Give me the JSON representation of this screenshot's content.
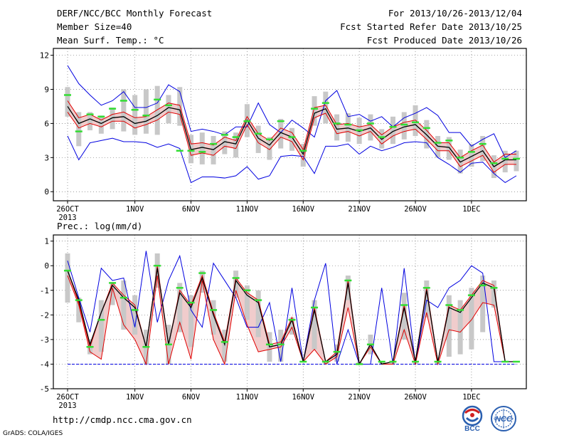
{
  "header": {
    "title": "DERF/NCC/BCC Monthly Forecast",
    "member_size": "Member Size=40",
    "variable": "Mean Surf. Temp.: °C",
    "period": "For 2013/10/26-2013/12/04",
    "fcst_started": "Fcst Started Refer Date 2013/10/25",
    "fcst_produced": "Fcst Produced Date 2013/10/26"
  },
  "footer": {
    "url": "http://cmdp.ncc.cma.gov.cn",
    "grads": "GrADS: COLA/IGES",
    "logo_bcc": "BCC",
    "logo_ncc": "NCC"
  },
  "colors": {
    "mean": "#000000",
    "percentiles": "#e00000",
    "extremes": "#0000e0",
    "observed": "#33dd33",
    "spread_bar": "#c8c8c8",
    "band_fill": "#f0cccc"
  },
  "chart_data": [
    {
      "type": "line",
      "title": "",
      "ylabel": "",
      "ylim": [
        -0.8,
        12.6
      ],
      "yticks": [
        0,
        3,
        6,
        9,
        12
      ],
      "xticks": [
        {
          "day": 0,
          "label": "26OCT",
          "sub": "2013"
        },
        {
          "day": 6,
          "label": "1NOV"
        },
        {
          "day": 11,
          "label": "6NOV"
        },
        {
          "day": 16,
          "label": "11NOV"
        },
        {
          "day": 21,
          "label": "16NOV"
        },
        {
          "day": 26,
          "label": "21NOV"
        },
        {
          "day": 31,
          "label": "26NOV"
        },
        {
          "day": 36,
          "label": "1DEC"
        }
      ],
      "grid": true,
      "x_days": 40,
      "series": [
        {
          "role": "max",
          "values": [
            11.1,
            9.5,
            8.5,
            7.6,
            8.0,
            8.8,
            7.4,
            7.4,
            7.8,
            9.4,
            8.8,
            5.3,
            5.5,
            5.3,
            5.0,
            5.7,
            5.7,
            7.8,
            5.9,
            5.2,
            6.3,
            5.6,
            4.8,
            8.0,
            8.9,
            6.6,
            6.8,
            6.2,
            6.6,
            5.7,
            6.5,
            6.9,
            7.4,
            6.7,
            5.2,
            5.2,
            4.0,
            4.6,
            5.1,
            3.0,
            3.6
          ]
        },
        {
          "role": "p80",
          "values": [
            8.0,
            6.5,
            6.8,
            6.3,
            6.8,
            7.0,
            6.5,
            6.6,
            7.2,
            7.8,
            7.6,
            4.2,
            4.3,
            4.1,
            4.8,
            4.5,
            6.6,
            5.1,
            4.5,
            5.6,
            5.2,
            3.7,
            7.4,
            7.6,
            5.9,
            6.0,
            5.7,
            5.9,
            5.0,
            5.7,
            6.1,
            6.3,
            5.4,
            4.3,
            4.3,
            3.0,
            3.6,
            4.1,
            2.6,
            3.3,
            3.3
          ]
        },
        {
          "role": "mean",
          "values": [
            7.5,
            6.0,
            6.4,
            6.0,
            6.5,
            6.6,
            6.0,
            6.2,
            6.7,
            7.4,
            7.2,
            3.7,
            3.9,
            3.7,
            4.4,
            4.2,
            6.3,
            4.7,
            4.1,
            5.2,
            4.8,
            3.3,
            6.9,
            7.3,
            5.5,
            5.6,
            5.3,
            5.6,
            4.6,
            5.3,
            5.7,
            5.9,
            5.0,
            4.0,
            3.9,
            2.6,
            3.1,
            3.6,
            2.2,
            2.8,
            2.8
          ]
        },
        {
          "role": "p20",
          "values": [
            7.0,
            5.6,
            6.0,
            5.7,
            6.2,
            6.2,
            5.6,
            5.9,
            6.3,
            7.0,
            6.8,
            3.2,
            3.4,
            3.2,
            4.0,
            3.8,
            5.9,
            4.3,
            3.7,
            4.8,
            4.4,
            2.8,
            6.5,
            6.9,
            5.1,
            5.3,
            4.9,
            5.3,
            4.2,
            4.9,
            5.3,
            5.5,
            4.6,
            3.6,
            3.6,
            2.2,
            2.7,
            3.2,
            1.7,
            2.4,
            2.4
          ]
        },
        {
          "role": "min",
          "values": [
            4.9,
            2.8,
            4.3,
            4.5,
            4.7,
            4.4,
            4.4,
            4.3,
            3.9,
            4.2,
            3.8,
            0.8,
            1.3,
            1.3,
            1.2,
            1.4,
            2.2,
            1.1,
            1.4,
            3.1,
            3.2,
            3.1,
            1.6,
            4.0,
            4.0,
            4.2,
            3.3,
            4.0,
            3.6,
            3.9,
            4.3,
            4.4,
            4.3,
            3.0,
            2.4,
            1.7,
            2.5,
            2.6,
            1.6,
            0.8,
            1.4
          ]
        },
        {
          "role": "observed",
          "values": [
            8.5,
            5.3,
            6.8,
            6.6,
            7.3,
            8.0,
            7.2,
            6.7,
            8.1,
            7.6,
            3.6,
            3.6,
            3.5,
            4.2,
            5.0,
            4.8,
            6.2,
            5.1,
            4.6,
            6.2,
            4.8,
            3.6,
            7.3,
            7.8,
            6.0,
            5.9,
            5.4,
            6.0,
            4.8,
            5.7,
            5.9,
            6.1,
            5.6,
            4.3,
            4.5,
            3.0,
            3.5,
            4.2,
            2.5,
            2.9,
            2.9
          ]
        },
        {
          "role": "spread_upper",
          "values": [
            9.2,
            7.0,
            7.0,
            6.7,
            7.4,
            9.0,
            8.5,
            9.0,
            9.3,
            8.5,
            9.2,
            5.0,
            5.2,
            4.9,
            5.3,
            5.2,
            7.7,
            5.8,
            4.8,
            6.4,
            5.6,
            4.2,
            8.4,
            8.8,
            6.8,
            6.9,
            6.5,
            6.8,
            5.5,
            6.6,
            7.0,
            7.6,
            6.3,
            4.9,
            4.8,
            3.7,
            4.2,
            4.9,
            3.2,
            3.6,
            3.6
          ]
        },
        {
          "role": "spread_lower",
          "values": [
            6.6,
            4.0,
            5.4,
            5.1,
            5.5,
            5.3,
            5.0,
            5.1,
            5.0,
            6.0,
            5.8,
            2.5,
            2.4,
            2.4,
            3.3,
            3.0,
            4.8,
            3.4,
            2.8,
            3.8,
            3.6,
            2.2,
            5.8,
            6.0,
            4.5,
            4.4,
            4.2,
            4.5,
            3.8,
            4.2,
            4.6,
            4.9,
            3.8,
            3.0,
            2.8,
            1.6,
            2.2,
            2.7,
            1.2,
            1.7,
            1.8
          ]
        }
      ]
    },
    {
      "type": "line",
      "title": "Prec.: log(mm/d)",
      "ylabel": "",
      "ylim": [
        -5,
        1.25
      ],
      "yticks": [
        -5,
        -4,
        -3,
        -2,
        -1,
        0,
        1
      ],
      "xticks": [
        {
          "day": 0,
          "label": "26OCT",
          "sub": "2013"
        },
        {
          "day": 6,
          "label": "1NOV"
        },
        {
          "day": 11,
          "label": "6NOV"
        },
        {
          "day": 16,
          "label": "11NOV"
        },
        {
          "day": 21,
          "label": "16NOV"
        },
        {
          "day": 26,
          "label": "21NOV"
        },
        {
          "day": 31,
          "label": "26NOV"
        },
        {
          "day": 36,
          "label": "1DEC"
        }
      ],
      "grid": true,
      "x_days": 40,
      "series": [
        {
          "role": "max",
          "values": [
            0.2,
            -1.3,
            -2.7,
            -0.1,
            -0.6,
            -0.5,
            -2.5,
            0.6,
            -2.3,
            -0.6,
            0.4,
            -1.8,
            -2.5,
            0.1,
            -0.6,
            -1.3,
            -2.5,
            -2.5,
            -1.5,
            -3.9,
            -0.9,
            -3.9,
            -1.4,
            0.1,
            -4.0,
            -2.6,
            -4.0,
            -4.0,
            -0.9,
            -4.0,
            -0.1,
            -4.0,
            -1.4,
            -1.7,
            -0.9,
            -0.6,
            0.0,
            -0.3,
            -3.9,
            -3.9,
            -3.9
          ]
        },
        {
          "role": "p80",
          "values": [
            -0.2,
            -1.5,
            -3.3,
            -1.9,
            -0.7,
            -1.2,
            -1.6,
            -3.3,
            0.0,
            -3.2,
            -1.0,
            -1.6,
            -0.4,
            -1.9,
            -3.1,
            -0.5,
            -1.1,
            -1.4,
            -3.2,
            -3.1,
            -2.1,
            -3.9,
            -1.7,
            -3.9,
            -3.5,
            -0.6,
            -4.0,
            -3.2,
            -4.0,
            -3.9,
            -1.6,
            -3.9,
            -0.9,
            -3.9,
            -1.6,
            -1.8,
            -1.2,
            -0.6,
            -0.8,
            -3.9,
            -3.9
          ]
        },
        {
          "role": "mean",
          "values": [
            -0.2,
            -1.4,
            -3.2,
            -1.9,
            -0.8,
            -1.3,
            -1.7,
            -3.3,
            -0.1,
            -3.2,
            -1.1,
            -1.7,
            -0.5,
            -2.0,
            -3.2,
            -0.6,
            -1.2,
            -1.5,
            -3.3,
            -3.2,
            -2.2,
            -3.9,
            -1.8,
            -3.9,
            -3.6,
            -0.7,
            -4.0,
            -3.2,
            -4.0,
            -3.9,
            -1.7,
            -3.9,
            -1.0,
            -3.9,
            -1.7,
            -1.9,
            -1.3,
            -0.7,
            -0.9,
            -3.9,
            -3.9
          ]
        },
        {
          "role": "p20",
          "values": [
            -0.4,
            -1.6,
            -3.5,
            -3.8,
            -0.9,
            -2.4,
            -3.0,
            -4.0,
            -0.4,
            -4.0,
            -2.3,
            -3.8,
            -0.6,
            -3.0,
            -4.0,
            -1.0,
            -2.4,
            -3.5,
            -3.4,
            -3.3,
            -2.5,
            -3.9,
            -3.4,
            -4.0,
            -3.7,
            -1.7,
            -4.0,
            -3.3,
            -4.0,
            -4.0,
            -2.6,
            -4.0,
            -1.9,
            -4.0,
            -2.6,
            -2.7,
            -2.2,
            -1.5,
            -1.6,
            -3.9,
            -3.9
          ]
        },
        {
          "role": "min",
          "values": [
            -3.6,
            -4.0,
            -4.0,
            -4.0,
            -4.0,
            -4.0,
            -4.0,
            -4.0,
            -4.0,
            -4.0,
            -4.0,
            -4.0,
            -4.0,
            -4.0,
            -4.0,
            -4.0,
            -4.0,
            -4.0,
            -4.0,
            -4.0,
            -4.0,
            -4.0,
            -4.0,
            -4.0,
            -4.0,
            -4.0,
            -4.0,
            -4.0,
            -4.0,
            -4.0,
            -4.0,
            -4.0,
            -4.0,
            -4.0,
            -4.0,
            -4.0,
            -4.0,
            -4.0,
            -4.0,
            -4.0,
            -4.0
          ]
        },
        {
          "role": "observed",
          "values": [
            -0.2,
            -1.4,
            -3.3,
            -2.2,
            -0.7,
            -1.3,
            -1.8,
            -3.3,
            0.0,
            -3.2,
            -0.9,
            -1.5,
            -0.3,
            -1.8,
            -3.1,
            -0.5,
            -1.0,
            -1.4,
            -3.2,
            -3.2,
            -2.2,
            -3.9,
            -1.7,
            -3.9,
            -3.5,
            -0.6,
            -4.0,
            -3.2,
            -3.9,
            -3.9,
            -1.6,
            -3.9,
            -0.9,
            -3.9,
            -1.6,
            -1.8,
            -1.2,
            -0.8,
            -0.9,
            -3.9,
            -3.9
          ]
        },
        {
          "role": "spread_upper",
          "values": [
            0.5,
            -1.3,
            -3.0,
            -1.4,
            -0.7,
            -0.6,
            -1.2,
            -2.6,
            0.5,
            -2.4,
            -0.7,
            -1.2,
            -0.2,
            -1.4,
            -2.6,
            -0.2,
            -0.8,
            -1.0,
            -2.7,
            -2.6,
            -2.1,
            -3.9,
            -1.4,
            -3.9,
            -3.2,
            -0.4,
            -3.9,
            -2.8,
            -3.9,
            -3.9,
            -1.1,
            -3.9,
            -0.6,
            -3.9,
            -1.2,
            -1.4,
            -0.9,
            -0.4,
            -0.6,
            -3.9,
            -3.9
          ]
        },
        {
          "role": "spread_lower",
          "values": [
            -1.5,
            -2.3,
            -3.6,
            -3.5,
            -1.6,
            -2.6,
            -2.8,
            -4.0,
            -0.9,
            -4.0,
            -2.7,
            -3.3,
            -1.1,
            -2.8,
            -3.9,
            -1.3,
            -2.2,
            -2.9,
            -3.9,
            -3.9,
            -2.8,
            -3.9,
            -3.4,
            -4.0,
            -3.9,
            -1.4,
            -4.0,
            -3.6,
            -4.0,
            -4.0,
            -3.0,
            -4.0,
            -2.1,
            -4.0,
            -3.7,
            -3.6,
            -3.4,
            -2.7,
            -1.7,
            -3.9,
            -3.9
          ]
        }
      ]
    }
  ]
}
